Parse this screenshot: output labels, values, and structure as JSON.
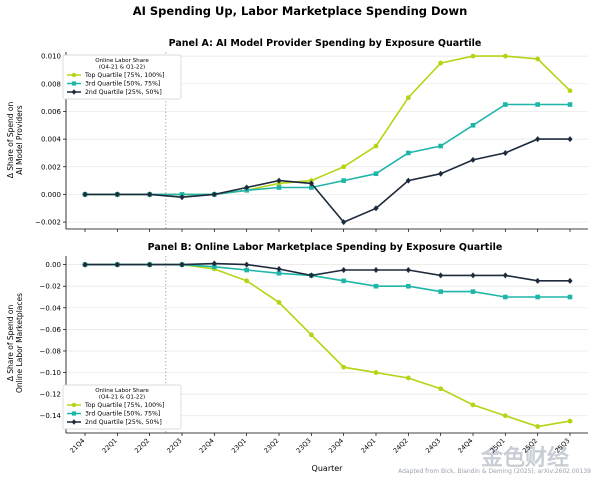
{
  "figure": {
    "title": "AI Spending Up, Labor Marketplace Spending Down",
    "source_note": "Adapted from Bick, Blandin & Deming (2025), arXiv:2602.00139",
    "watermark": "金色财经",
    "xlabel": "Quarter",
    "quarters": [
      "21Q4",
      "22Q1",
      "22Q2",
      "22Q3",
      "22Q4",
      "23Q1",
      "23Q2",
      "23Q3",
      "23Q4",
      "24Q1",
      "24Q2",
      "24Q3",
      "24Q4",
      "25Q1",
      "25Q2",
      "25Q3"
    ],
    "legend_title": [
      "Online Labor Share",
      "(Q4-21 & Q1-22)"
    ],
    "colors": {
      "top": "#b5d414",
      "third": "#1fb5a9",
      "second": "#1e2b3c",
      "grid": "#e6e6e6",
      "vline": "#9a9a9a"
    }
  },
  "chart_data": [
    {
      "type": "line",
      "title": "Panel A: AI Model Provider Spending by Exposure Quartile",
      "ylabel": [
        "Δ Share of Spend on",
        "AI Model Providers"
      ],
      "ylim": [
        -0.0025,
        0.0103
      ],
      "yticks": [
        -0.002,
        0.0,
        0.002,
        0.004,
        0.006,
        0.008,
        0.01
      ],
      "yticklabels": [
        "−0.002",
        "0.000",
        "0.002",
        "0.004",
        "0.006",
        "0.008",
        "0.010"
      ],
      "reference_line_after": "22Q2",
      "legend_position": "top-left",
      "series": [
        {
          "key": "top",
          "name": "Top Quartile [75%, 100%]",
          "marker": "circle",
          "values": [
            0,
            0,
            0,
            0,
            0,
            0.0003,
            0.0008,
            0.001,
            0.002,
            0.0035,
            0.007,
            0.0095,
            0.01,
            0.01,
            0.0098,
            0.0075
          ]
        },
        {
          "key": "third",
          "name": "3rd Quartile [50%, 75%]",
          "marker": "square",
          "values": [
            0,
            0,
            0,
            0,
            0,
            0.0003,
            0.0005,
            0.0005,
            0.001,
            0.0015,
            0.003,
            0.0035,
            0.005,
            0.0065,
            0.0065,
            0.0065
          ]
        },
        {
          "key": "second",
          "name": "2nd Quartile [25%, 50%]",
          "marker": "diamond",
          "values": [
            0,
            0,
            0,
            -0.0002,
            0,
            0.0005,
            0.001,
            0.0008,
            -0.002,
            -0.001,
            0.001,
            0.0015,
            0.0025,
            0.003,
            0.004,
            0.004
          ]
        }
      ]
    },
    {
      "type": "line",
      "title": "Panel B: Online Labor Marketplace Spending by Exposure Quartile",
      "ylabel": [
        "Δ Share of Spend on",
        "Online Labor Marketplaces"
      ],
      "ylim": [
        -0.156,
        0.008
      ],
      "yticks": [
        -0.14,
        -0.12,
        -0.1,
        -0.08,
        -0.06,
        -0.04,
        -0.02,
        0.0
      ],
      "yticklabels": [
        "−0.14",
        "−0.12",
        "−0.10",
        "−0.08",
        "−0.06",
        "−0.04",
        "−0.02",
        "0.00"
      ],
      "reference_line_after": "22Q2",
      "legend_position": "bottom-left",
      "series": [
        {
          "key": "top",
          "name": "Top Quartile [75%, 100%]",
          "marker": "circle",
          "values": [
            0,
            0,
            0,
            0,
            -0.004,
            -0.015,
            -0.035,
            -0.065,
            -0.095,
            -0.1,
            -0.105,
            -0.115,
            -0.13,
            -0.14,
            -0.15,
            -0.145
          ]
        },
        {
          "key": "third",
          "name": "3rd Quartile [50%, 75%]",
          "marker": "square",
          "values": [
            0,
            0,
            0,
            0,
            -0.002,
            -0.005,
            -0.008,
            -0.01,
            -0.015,
            -0.02,
            -0.02,
            -0.025,
            -0.025,
            -0.03,
            -0.03,
            -0.03
          ]
        },
        {
          "key": "second",
          "name": "2nd Quartile [25%, 50%]",
          "marker": "diamond",
          "values": [
            0,
            0,
            0,
            0,
            0.001,
            0,
            -0.004,
            -0.01,
            -0.005,
            -0.005,
            -0.005,
            -0.01,
            -0.01,
            -0.01,
            -0.015,
            -0.015
          ]
        }
      ]
    }
  ]
}
